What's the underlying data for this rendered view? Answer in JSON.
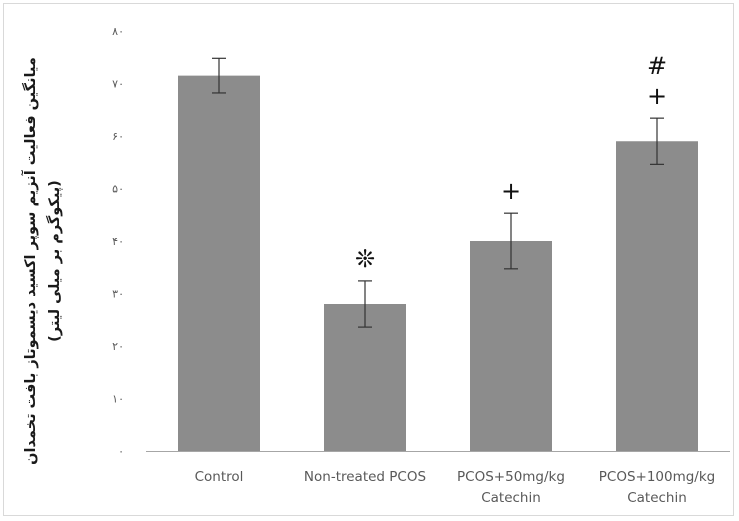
{
  "chart_data": {
    "type": "bar",
    "ylabel_line1": "میانگین فعالیت آنزیم سوپر اکسید دیسموتاز بافت تخمدان",
    "ylabel_line2": "(پیکوگرم بر میلی لیتر)",
    "categories": [
      [
        "Control"
      ],
      [
        "Non-treated  PCOS"
      ],
      [
        "PCOS+50mg/kg",
        "Catechin"
      ],
      [
        "PCOS+100mg/kg",
        "Catechin"
      ]
    ],
    "values": [
      71.5,
      28,
      40,
      59
    ],
    "error": [
      3.3,
      4.4,
      5.3,
      4.4
    ],
    "ylim": [
      0,
      80
    ],
    "yticks": [
      0,
      10,
      20,
      30,
      40,
      50,
      60,
      70,
      80
    ],
    "ytick_labels": [
      "۰",
      "۱۰",
      "۲۰",
      "۳۰",
      "۴۰",
      "۵۰",
      "۶۰",
      "۷۰",
      "۸۰"
    ],
    "annotations": [
      {
        "bar": 1,
        "text": "❊"
      },
      {
        "bar": 2,
        "text": "+"
      },
      {
        "bar": 3,
        "text": "+"
      },
      {
        "bar": 3,
        "text": "#"
      }
    ],
    "grid": false,
    "colors": {
      "bar": "#8c8c8c",
      "axis": "#a6a6a6",
      "text": "#595959",
      "error": "#333333"
    }
  }
}
